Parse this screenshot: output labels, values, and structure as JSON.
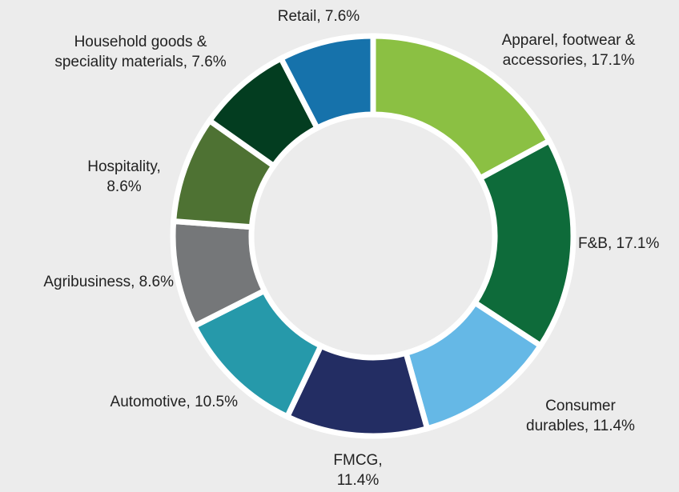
{
  "chart_data": {
    "type": "donut",
    "categories": [
      "Apparel, footwear & accessories, 17.1%",
      "F&B, 17.1%",
      "Consumer durables, 11.4%",
      "FMCG, 11.4%",
      "Automotive, 10.5%",
      "Agribusiness, 8.6%",
      "Hospitality, 8.6%",
      "Household goods & speciality materials, 7.6%",
      "Retail, 7.6%"
    ],
    "values": [
      17.1,
      17.1,
      11.4,
      11.4,
      10.5,
      8.6,
      8.6,
      7.6,
      7.6
    ],
    "colors": [
      "#8bc043",
      "#0e6b3a",
      "#65b8e6",
      "#232d63",
      "#2699aa",
      "#757779",
      "#4e7233",
      "#033d20",
      "#1672ab"
    ]
  }
}
